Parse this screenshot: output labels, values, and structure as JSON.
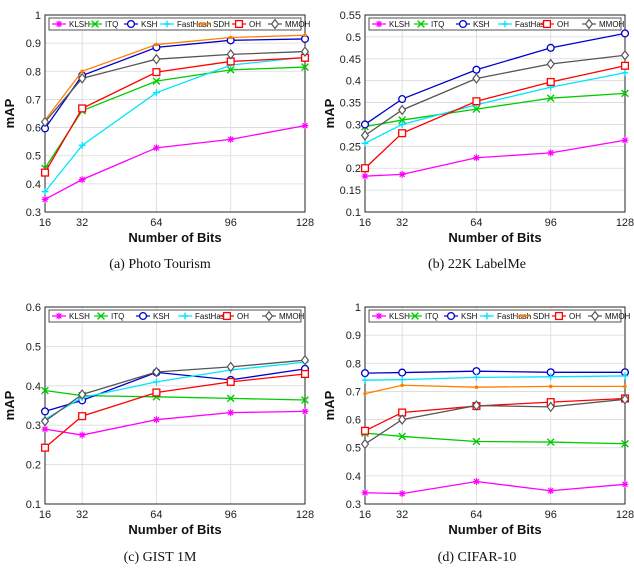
{
  "chart_data": [
    {
      "type": "line",
      "caption": "(a)  Photo Tourism",
      "xlabel": "Number of Bits",
      "ylabel": "mAP",
      "x": [
        16,
        32,
        64,
        96,
        128
      ],
      "xticks": [
        "16",
        "32",
        "64",
        "96",
        "128"
      ],
      "xlim": [
        16,
        128
      ],
      "ylim": [
        0.3,
        1.0
      ],
      "yticks": [
        "0.3",
        "0.4",
        "0.5",
        "0.6",
        "0.7",
        "0.8",
        "0.9",
        "1"
      ],
      "grid": true,
      "legend": "top",
      "series": [
        {
          "name": "KLSH",
          "color": "#ff00ff",
          "marker": "star",
          "values": [
            0.345,
            0.415,
            0.528,
            0.558,
            0.607
          ]
        },
        {
          "name": "ITQ",
          "color": "#00cc00",
          "marker": "x",
          "values": [
            0.455,
            0.66,
            0.765,
            0.805,
            0.815
          ]
        },
        {
          "name": "KSH",
          "color": "#0000cc",
          "marker": "circle",
          "values": [
            0.597,
            0.785,
            0.885,
            0.91,
            0.915
          ]
        },
        {
          "name": "FastHash",
          "color": "#00e5ff",
          "marker": "plus",
          "values": [
            0.372,
            0.537,
            0.724,
            0.822,
            0.85
          ]
        },
        {
          "name": "SDH",
          "color": "#ff8000",
          "marker": "dot",
          "values": [
            0.626,
            0.8,
            0.895,
            0.92,
            0.928
          ]
        },
        {
          "name": "OH",
          "color": "#ff0000",
          "marker": "square",
          "values": [
            0.44,
            0.668,
            0.797,
            0.835,
            0.848
          ]
        },
        {
          "name": "MMOH",
          "color": "#555555",
          "marker": "diamond",
          "values": [
            0.62,
            0.775,
            0.843,
            0.86,
            0.87
          ]
        }
      ]
    },
    {
      "type": "line",
      "caption": "(b)  22K LabelMe",
      "xlabel": "Number of Bits",
      "ylabel": "mAP",
      "x": [
        16,
        32,
        64,
        96,
        128
      ],
      "xticks": [
        "16",
        "32",
        "64",
        "96",
        "128"
      ],
      "xlim": [
        16,
        128
      ],
      "ylim": [
        0.1,
        0.55
      ],
      "yticks": [
        "0.1",
        "0.15",
        "0.2",
        "0.25",
        "0.3",
        "0.35",
        "0.4",
        "0.45",
        "0.5",
        "0.55"
      ],
      "grid": true,
      "legend": "top",
      "series": [
        {
          "name": "KLSH",
          "color": "#ff00ff",
          "marker": "star",
          "values": [
            0.182,
            0.186,
            0.224,
            0.235,
            0.264
          ]
        },
        {
          "name": "ITQ",
          "color": "#00cc00",
          "marker": "x",
          "values": [
            0.295,
            0.31,
            0.335,
            0.36,
            0.371
          ]
        },
        {
          "name": "KSH",
          "color": "#0000cc",
          "marker": "circle",
          "values": [
            0.3,
            0.358,
            0.425,
            0.475,
            0.508
          ]
        },
        {
          "name": "FastHash",
          "color": "#00e5ff",
          "marker": "plus",
          "values": [
            0.257,
            0.3,
            0.345,
            0.385,
            0.418
          ]
        },
        {
          "name": "OH",
          "color": "#ff0000",
          "marker": "square",
          "values": [
            0.2,
            0.28,
            0.353,
            0.397,
            0.434
          ]
        },
        {
          "name": "MMOH",
          "color": "#555555",
          "marker": "diamond",
          "values": [
            0.275,
            0.333,
            0.405,
            0.438,
            0.458
          ]
        }
      ]
    },
    {
      "type": "line",
      "caption": "(c)  GIST 1M",
      "xlabel": "Number of Bits",
      "ylabel": "mAP",
      "x": [
        16,
        32,
        64,
        96,
        128
      ],
      "xticks": [
        "16",
        "32",
        "64",
        "96",
        "128"
      ],
      "xlim": [
        16,
        128
      ],
      "ylim": [
        0.1,
        0.6
      ],
      "yticks": [
        "0.1",
        "0.2",
        "0.3",
        "0.4",
        "0.5",
        "0.6"
      ],
      "grid": true,
      "legend": "top",
      "series": [
        {
          "name": "KLSH",
          "color": "#ff00ff",
          "marker": "star",
          "values": [
            0.29,
            0.275,
            0.314,
            0.332,
            0.335
          ]
        },
        {
          "name": "ITQ",
          "color": "#00cc00",
          "marker": "x",
          "values": [
            0.388,
            0.375,
            0.372,
            0.368,
            0.364
          ]
        },
        {
          "name": "KSH",
          "color": "#0000cc",
          "marker": "circle",
          "values": [
            0.335,
            0.363,
            0.434,
            0.415,
            0.443
          ]
        },
        {
          "name": "FastHash",
          "color": "#00e5ff",
          "marker": "plus",
          "values": [
            0.315,
            0.37,
            0.41,
            0.44,
            0.46
          ]
        },
        {
          "name": "OH",
          "color": "#ff0000",
          "marker": "square",
          "values": [
            0.243,
            0.323,
            0.383,
            0.41,
            0.43
          ]
        },
        {
          "name": "MMOH",
          "color": "#555555",
          "marker": "diamond",
          "values": [
            0.31,
            0.378,
            0.435,
            0.448,
            0.465
          ]
        }
      ]
    },
    {
      "type": "line",
      "caption": "(d)  CIFAR-10",
      "xlabel": "Number of Bits",
      "ylabel": "mAP",
      "x": [
        16,
        32,
        64,
        96,
        128
      ],
      "xticks": [
        "16",
        "32",
        "64",
        "96",
        "128"
      ],
      "xlim": [
        16,
        128
      ],
      "ylim": [
        0.3,
        1.0
      ],
      "yticks": [
        "0.3",
        "0.4",
        "0.5",
        "0.6",
        "0.7",
        "0.8",
        "0.9",
        "1"
      ],
      "grid": true,
      "legend": "top",
      "series": [
        {
          "name": "KLSH",
          "color": "#ff00ff",
          "marker": "star",
          "values": [
            0.34,
            0.337,
            0.38,
            0.347,
            0.37
          ]
        },
        {
          "name": "ITQ",
          "color": "#00cc00",
          "marker": "x",
          "values": [
            0.552,
            0.54,
            0.522,
            0.52,
            0.514
          ]
        },
        {
          "name": "KSH",
          "color": "#0000cc",
          "marker": "circle",
          "values": [
            0.765,
            0.767,
            0.772,
            0.768,
            0.768
          ]
        },
        {
          "name": "FastHash",
          "color": "#00e5ff",
          "marker": "plus",
          "values": [
            0.74,
            0.742,
            0.75,
            0.752,
            0.755
          ]
        },
        {
          "name": "SDH",
          "color": "#ff8000",
          "marker": "dot",
          "values": [
            0.692,
            0.722,
            0.715,
            0.718,
            0.718
          ]
        },
        {
          "name": "OH",
          "color": "#ff0000",
          "marker": "square",
          "values": [
            0.56,
            0.625,
            0.648,
            0.662,
            0.675
          ]
        },
        {
          "name": "MMOH",
          "color": "#555555",
          "marker": "diamond",
          "values": [
            0.513,
            0.6,
            0.65,
            0.645,
            0.672
          ]
        }
      ]
    }
  ]
}
